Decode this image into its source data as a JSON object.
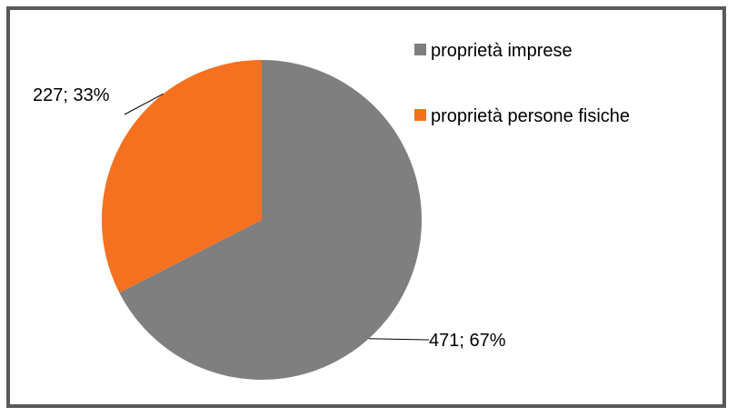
{
  "chart_data": {
    "type": "pie",
    "categories": [
      "proprietà imprese",
      "proprietà persone fisiche"
    ],
    "values": [
      471,
      227
    ],
    "percentages": [
      67,
      33
    ],
    "data_labels": [
      "471; 67%",
      "227; 33%"
    ],
    "colors": [
      "#7f7f7f",
      "#f5701f"
    ],
    "legend_position": "top-right",
    "title": ""
  }
}
